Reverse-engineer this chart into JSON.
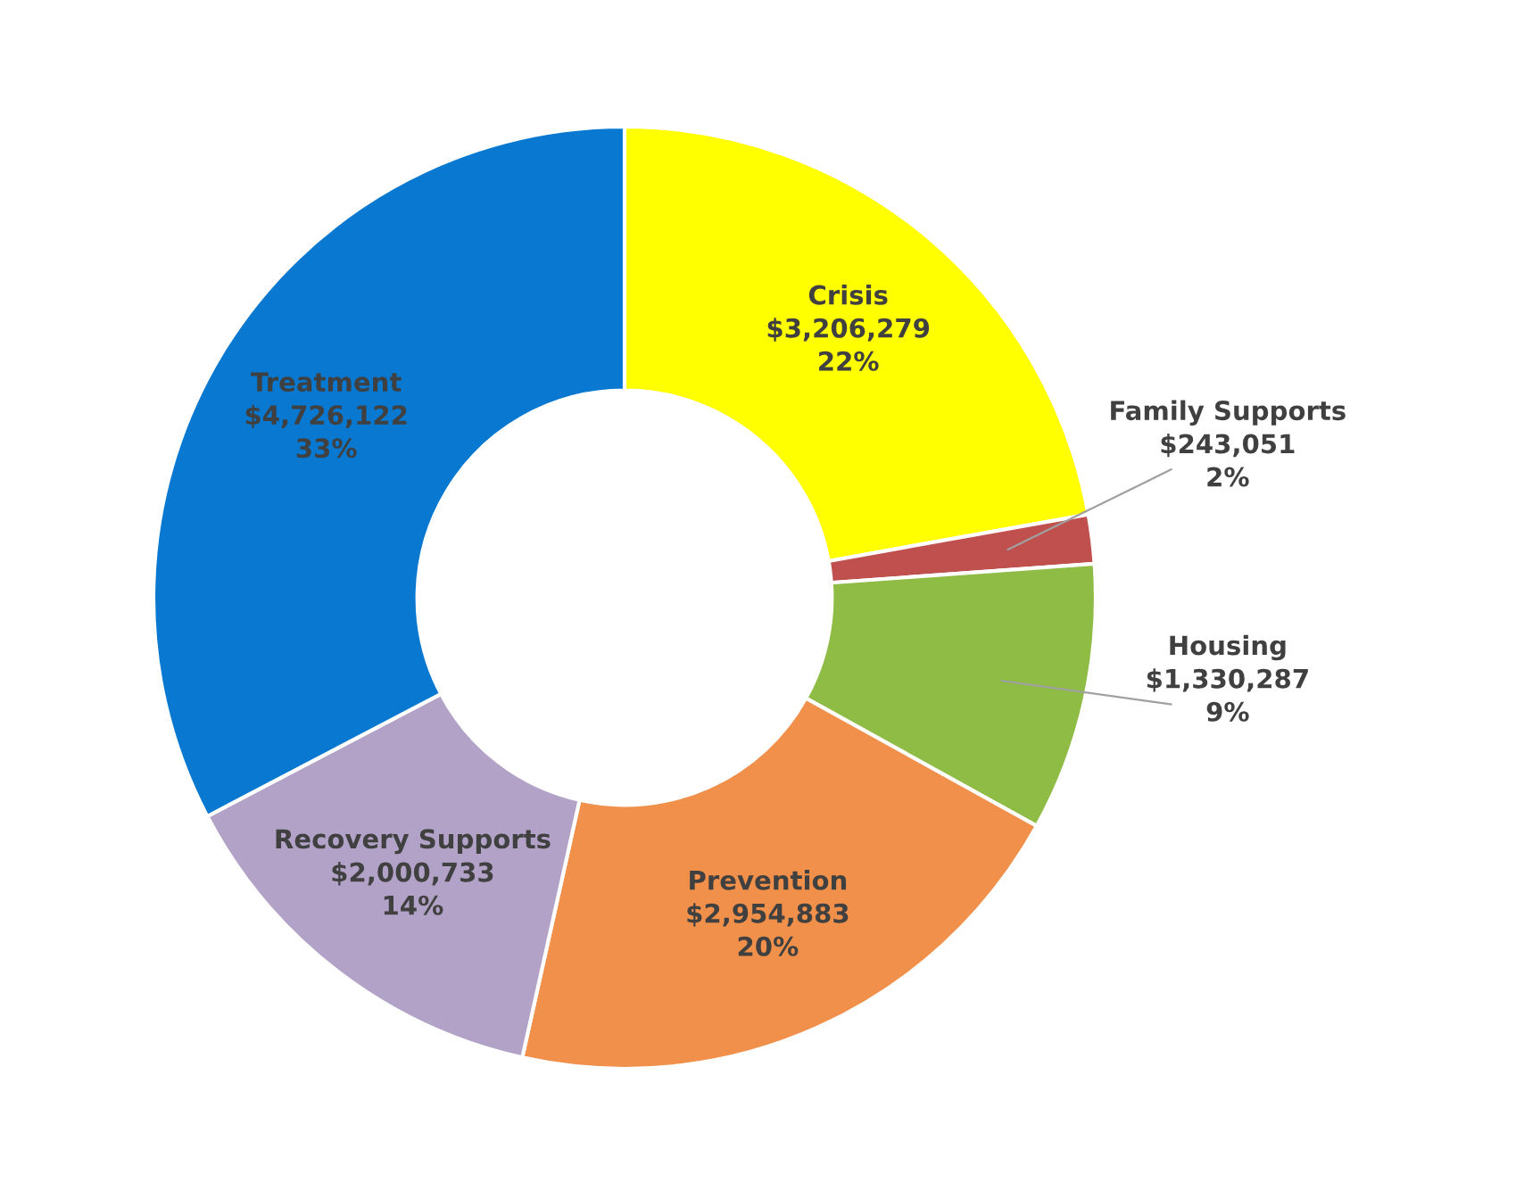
{
  "chart_data": {
    "type": "donut",
    "categories": [
      "Crisis",
      "Family Supports",
      "Housing",
      "Prevention",
      "Recovery Supports",
      "Treatment"
    ],
    "values": [
      3206279,
      243051,
      1330287,
      2954883,
      2000733,
      4726122
    ],
    "colors": [
      "#ffff00",
      "#c0504d",
      "#8fbc45",
      "#f0904a",
      "#b3a2c7",
      "#0878d0"
    ],
    "value_labels": [
      "$3,206,279\n22%",
      "$243,051\n2%",
      "$1,330,287\n9%",
      "$2,954,883\n20%",
      "$2,000,733\n14%",
      "$4,726,122\n33%"
    ],
    "legend": false
  }
}
